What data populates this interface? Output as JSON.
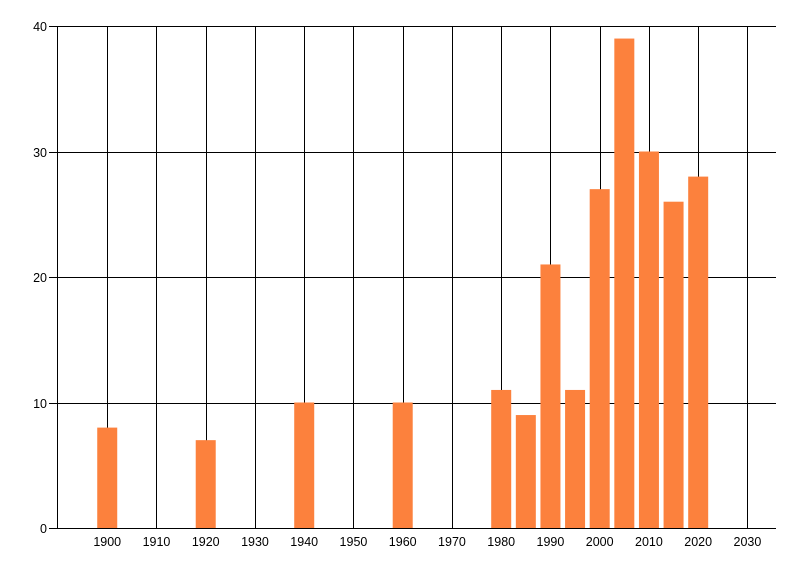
{
  "chart_data": {
    "type": "bar",
    "title": "",
    "xlabel": "",
    "ylabel": "",
    "x": [
      1900,
      1920,
      1940,
      1960,
      1980,
      1985,
      1990,
      1995,
      2000,
      2005,
      2010,
      2015,
      2020
    ],
    "values": [
      8,
      7,
      10,
      10,
      11,
      9,
      21,
      11,
      27,
      39,
      30,
      26,
      28
    ],
    "x_ticks": [
      1900,
      1910,
      1920,
      1930,
      1940,
      1950,
      1960,
      1970,
      1980,
      1990,
      2000,
      2010,
      2020,
      2030
    ],
    "y_ticks": [
      0,
      10,
      20,
      30,
      40
    ],
    "xlim": [
      1889.8,
      2035.8
    ],
    "ylim": [
      0,
      40
    ],
    "grid": "both",
    "legend": "none",
    "bar_color": "#fc813d",
    "grid_color": "#000000",
    "text_color": "#000000",
    "background_color": "#ffffff"
  }
}
